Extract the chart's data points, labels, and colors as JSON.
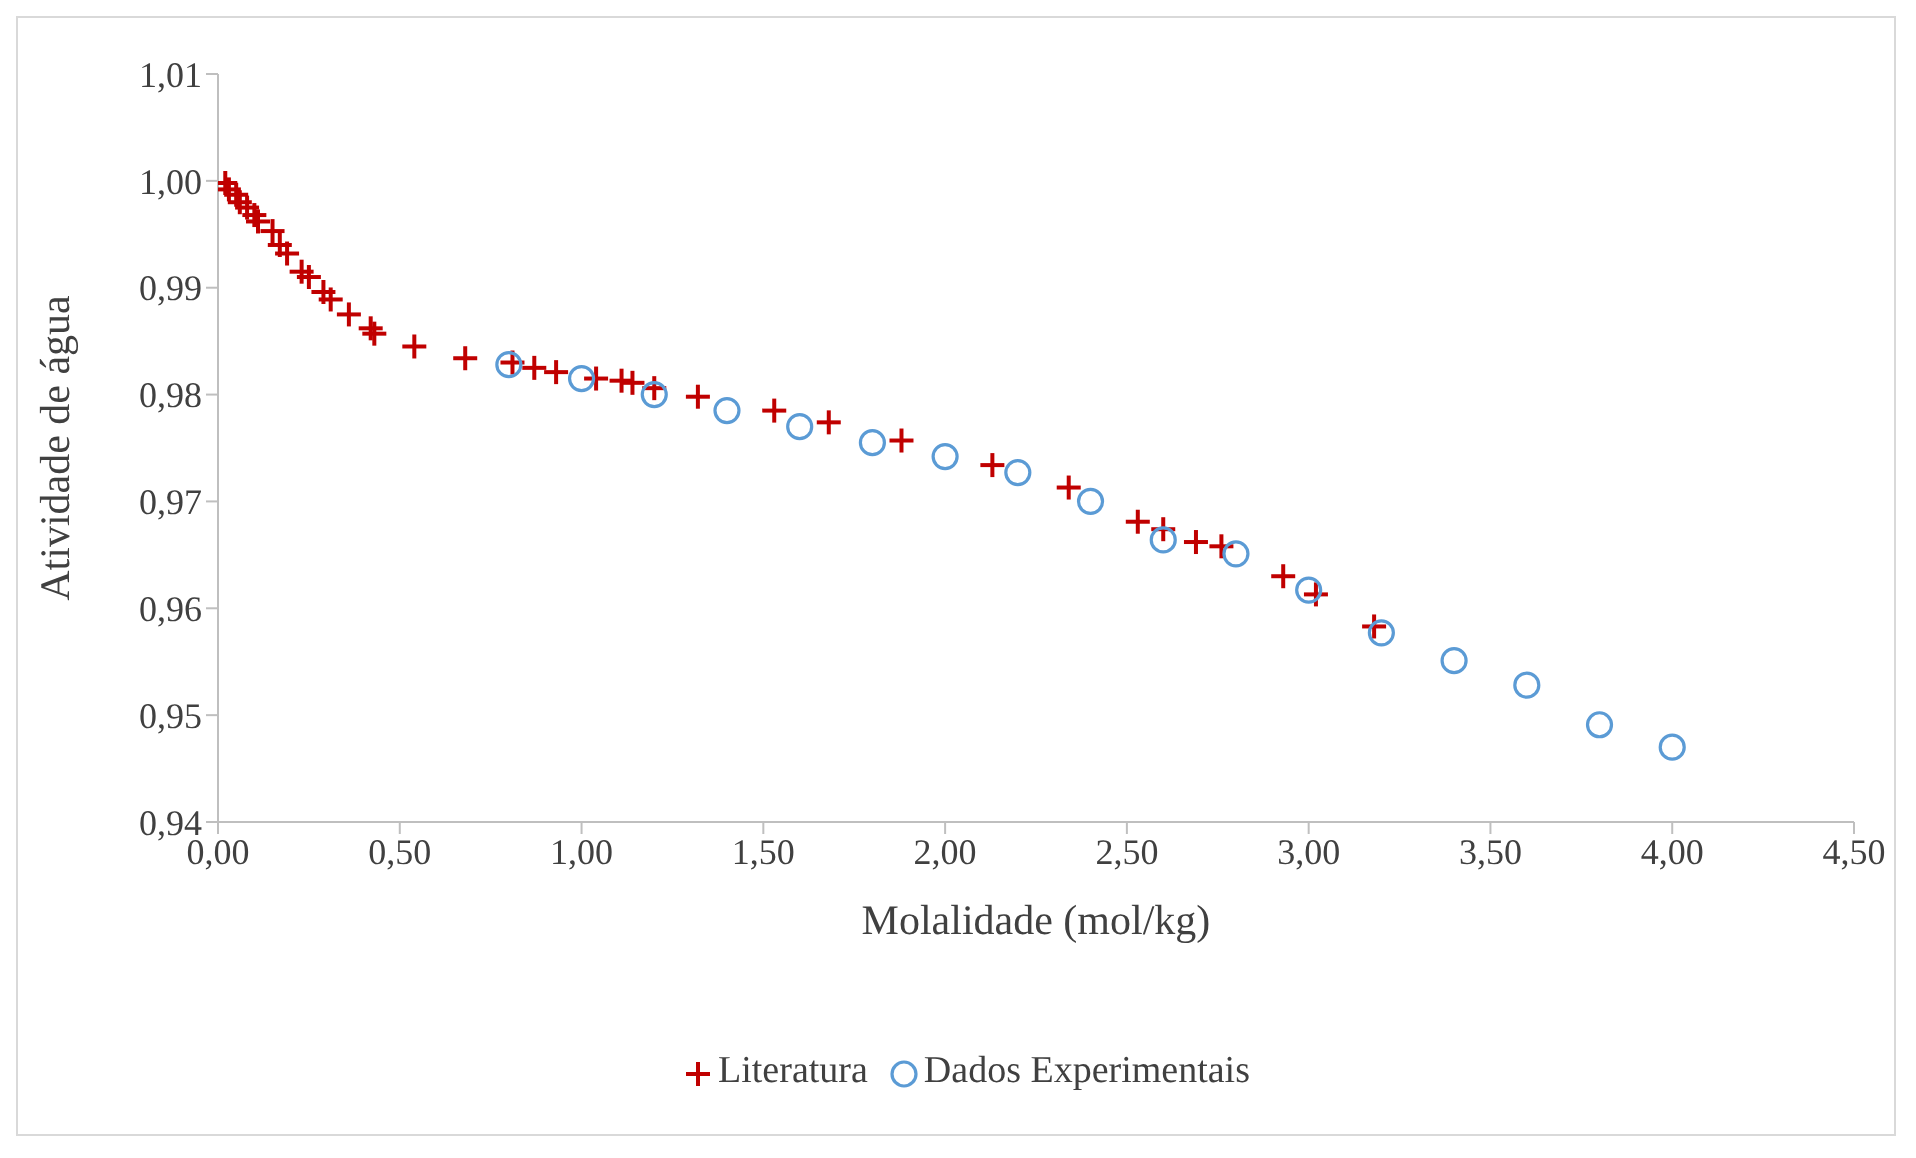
{
  "chart_data": {
    "type": "scatter",
    "xlabel": "Molalidade (mol/kg)",
    "ylabel": "Atividade de água",
    "xlim": [
      0,
      4.5
    ],
    "xticks": [
      {
        "value": 0,
        "label": "0,00"
      },
      {
        "value": 0.5,
        "label": "0,50"
      },
      {
        "value": 1,
        "label": "1,00"
      },
      {
        "value": 1.5,
        "label": "1,50"
      },
      {
        "value": 2,
        "label": "2,00"
      },
      {
        "value": 2.5,
        "label": "2,50"
      },
      {
        "value": 3,
        "label": "3,00"
      },
      {
        "value": 3.5,
        "label": "3,50"
      },
      {
        "value": 4,
        "label": "4,00"
      },
      {
        "value": 4.5,
        "label": "4,50"
      }
    ],
    "ylim": [
      0.94,
      1.01
    ],
    "yticks": [
      {
        "value": 0.94,
        "label": "0,94"
      },
      {
        "value": 0.95,
        "label": "0,95"
      },
      {
        "value": 0.96,
        "label": "0,96"
      },
      {
        "value": 0.97,
        "label": "0,97"
      },
      {
        "value": 0.98,
        "label": "0,98"
      },
      {
        "value": 0.99,
        "label": "0,99"
      },
      {
        "value": 1,
        "label": "1,00"
      },
      {
        "value": 1.01,
        "label": "1,01"
      }
    ],
    "grid": false,
    "legend": "bottom",
    "series": [
      {
        "name": "Literatura",
        "color": "#c00000",
        "marker": "cross",
        "x": [
          0.02,
          0.03,
          0.05,
          0.06,
          0.08,
          0.1,
          0.11,
          0.15,
          0.17,
          0.19,
          0.23,
          0.25,
          0.29,
          0.31,
          0.36,
          0.42,
          0.43,
          0.54,
          0.68,
          0.81,
          0.87,
          0.93,
          1.04,
          1.11,
          1.14,
          1.2,
          1.32,
          1.53,
          1.68,
          1.88,
          2.13,
          2.34,
          2.53,
          2.6,
          2.69,
          2.76,
          2.93,
          3.02,
          3.18
        ],
        "values": [
          0.9998,
          0.9992,
          0.9987,
          0.998,
          0.9975,
          0.9968,
          0.9962,
          0.9953,
          0.994,
          0.9932,
          0.9915,
          0.991,
          0.9896,
          0.9889,
          0.9875,
          0.9862,
          0.9857,
          0.9845,
          0.9834,
          0.983,
          0.9825,
          0.9821,
          0.9815,
          0.9813,
          0.9811,
          0.9806,
          0.9798,
          0.9785,
          0.9774,
          0.9757,
          0.9734,
          0.9713,
          0.9681,
          0.9674,
          0.9662,
          0.9658,
          0.963,
          0.9613,
          0.9583
        ]
      },
      {
        "name": "Dados Experimentais",
        "color": "#5b9bd5",
        "marker": "circle",
        "x": [
          0.8,
          1.0,
          1.2,
          1.4,
          1.6,
          1.8,
          2.0,
          2.2,
          2.4,
          2.6,
          2.8,
          3.0,
          3.2,
          3.4,
          3.6,
          3.8,
          4.0
        ],
        "values": [
          0.9828,
          0.9815,
          0.98,
          0.9785,
          0.977,
          0.9755,
          0.9742,
          0.9727,
          0.97,
          0.9664,
          0.9651,
          0.9617,
          0.9577,
          0.9551,
          0.9528,
          0.9491,
          0.947
        ]
      }
    ]
  }
}
